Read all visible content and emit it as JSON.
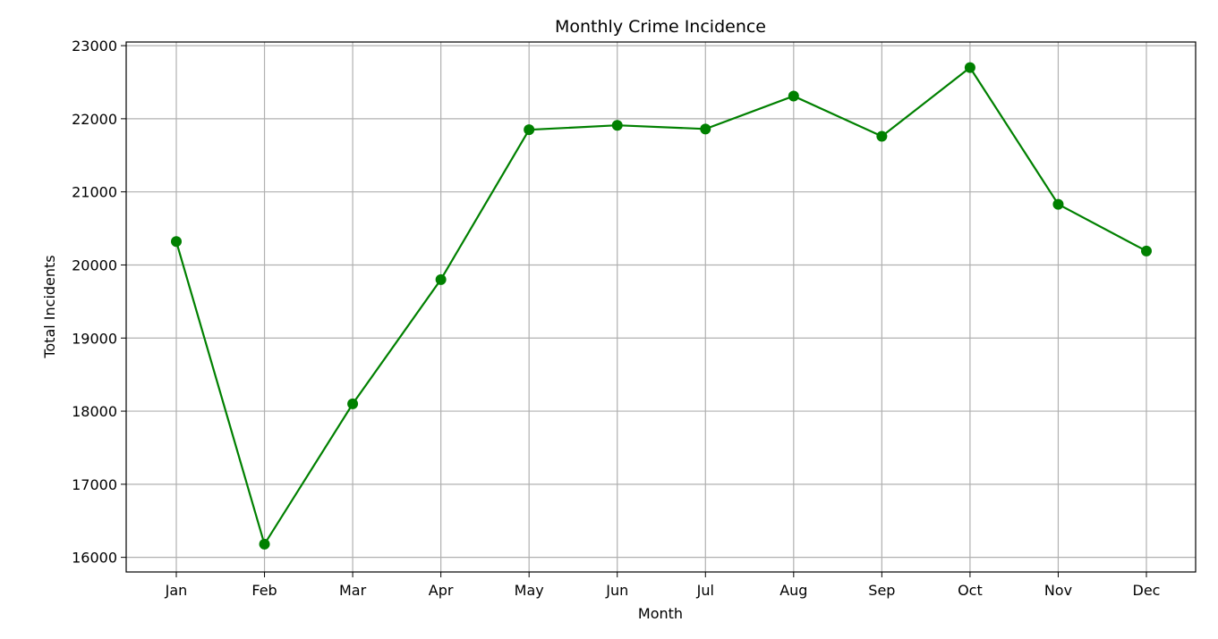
{
  "chart_data": {
    "type": "line",
    "title": "Monthly Crime Incidence",
    "xlabel": "Month",
    "ylabel": "Total Incidents",
    "categories": [
      "Jan",
      "Feb",
      "Mar",
      "Apr",
      "May",
      "Jun",
      "Jul",
      "Aug",
      "Sep",
      "Oct",
      "Nov",
      "Dec"
    ],
    "ylim": [
      15800,
      23050
    ],
    "yticks": [
      16000,
      17000,
      18000,
      19000,
      20000,
      21000,
      22000,
      23000
    ],
    "grid": true,
    "series": [
      {
        "color": "#008000",
        "marker": "circle",
        "values": [
          20320,
          16180,
          18100,
          19800,
          21850,
          21910,
          21860,
          22310,
          21760,
          22700,
          20830,
          20190
        ]
      }
    ]
  }
}
